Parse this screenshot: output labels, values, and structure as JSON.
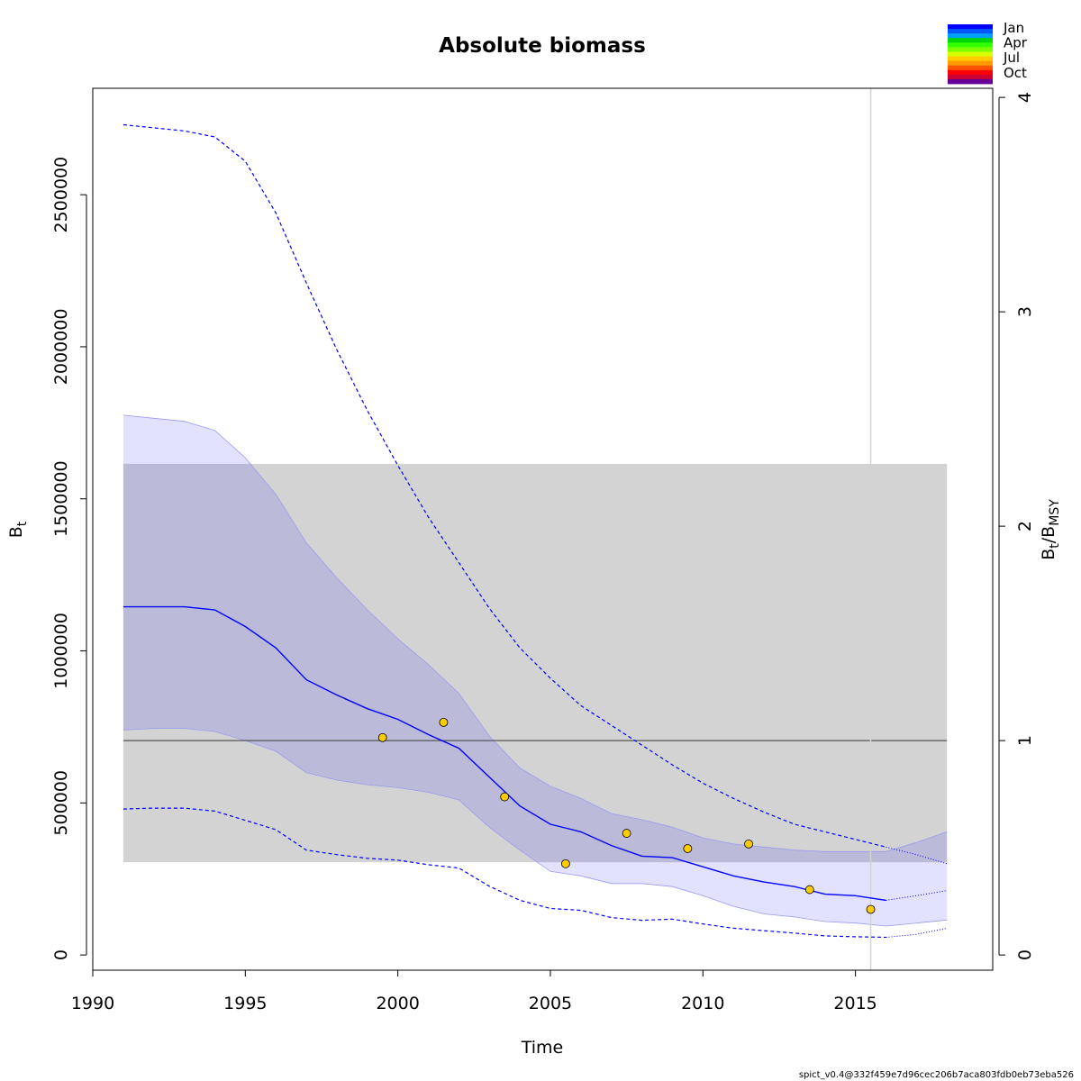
{
  "chart_data": {
    "type": "line",
    "title": "Absolute biomass",
    "xlabel": "Time",
    "ylabel": {
      "main": "B",
      "sub": "t"
    },
    "y2label": {
      "main1": "B",
      "sub1": "t",
      "slash": "/",
      "main2": "B",
      "sub2": "MSY"
    },
    "xlim": [
      1990,
      2019.5
    ],
    "ylim": [
      -50000,
      2850000
    ],
    "x_ticks": [
      1990,
      1995,
      2000,
      2005,
      2010,
      2015
    ],
    "y_ticks": [
      0,
      500000,
      1000000,
      1500000,
      2000000,
      2500000
    ],
    "y2_ticks": [
      0,
      1,
      2,
      3,
      4
    ],
    "bmsy": 705000,
    "bmsy_band": {
      "x": [
        1991,
        2018
      ],
      "lower": 305000,
      "upper": 1615000
    },
    "vline_x": 2015.5,
    "series": [
      {
        "name": "B estimate",
        "x": [
          1991,
          1992,
          1993,
          1994,
          1995,
          1996,
          1997,
          1998,
          1999,
          2000,
          2001,
          2002,
          2003,
          2004,
          2005,
          2006,
          2007,
          2008,
          2009,
          2010,
          2011,
          2012,
          2013,
          2014,
          2015,
          2016
        ],
        "values": [
          1145000,
          1145000,
          1145000,
          1135000,
          1080000,
          1010000,
          905000,
          855000,
          810000,
          775000,
          725000,
          680000,
          585000,
          490000,
          430000,
          405000,
          360000,
          325000,
          320000,
          290000,
          260000,
          240000,
          225000,
          200000,
          195000,
          180000
        ]
      },
      {
        "name": "B estimate forecast",
        "x": [
          2016,
          2017,
          2018
        ],
        "values": [
          180000,
          195000,
          212000
        ]
      },
      {
        "name": "B CI lower",
        "x": [
          1991,
          1992,
          1993,
          1994,
          1995,
          1996,
          1997,
          1998,
          1999,
          2000,
          2001,
          2002,
          2003,
          2004,
          2005,
          2006,
          2007,
          2008,
          2009,
          2010,
          2011,
          2012,
          2013,
          2014,
          2015,
          2016,
          2017,
          2018
        ],
        "values": [
          740000,
          745000,
          745000,
          735000,
          705000,
          670000,
          600000,
          575000,
          560000,
          550000,
          535000,
          510000,
          420000,
          345000,
          275000,
          260000,
          235000,
          235000,
          225000,
          195000,
          160000,
          135000,
          125000,
          110000,
          105000,
          95000,
          105000,
          115000
        ]
      },
      {
        "name": "B CI upper",
        "x": [
          1991,
          1992,
          1993,
          1994,
          1995,
          1996,
          1997,
          1998,
          1999,
          2000,
          2001,
          2002,
          2003,
          2004,
          2005,
          2006,
          2007,
          2008,
          2009,
          2010,
          2011,
          2012,
          2013,
          2014,
          2015,
          2016,
          2017,
          2018
        ],
        "values": [
          1775000,
          1765000,
          1755000,
          1725000,
          1635000,
          1515000,
          1355000,
          1240000,
          1135000,
          1040000,
          955000,
          860000,
          720000,
          615000,
          555000,
          515000,
          465000,
          445000,
          420000,
          385000,
          365000,
          355000,
          345000,
          340000,
          340000,
          340000,
          370000,
          405000
        ]
      },
      {
        "name": "B_MSY-scaled CI upper",
        "x": [
          1991,
          1992,
          1993,
          1994,
          1995,
          1996,
          1997,
          1998,
          1999,
          2000,
          2001,
          2002,
          2003,
          2004,
          2005,
          2006,
          2007,
          2008,
          2009,
          2010,
          2011,
          2012,
          2013,
          2014,
          2015,
          2016
        ],
        "values": [
          2730000,
          2720000,
          2710000,
          2690000,
          2610000,
          2440000,
          2210000,
          1990000,
          1790000,
          1610000,
          1440000,
          1290000,
          1140000,
          1010000,
          910000,
          820000,
          755000,
          690000,
          625000,
          565000,
          515000,
          470000,
          430000,
          405000,
          380000,
          355000
        ]
      },
      {
        "name": "B_MSY-scaled CI upper forecast",
        "x": [
          2016,
          2017,
          2018
        ],
        "values": [
          355000,
          330000,
          300000
        ]
      },
      {
        "name": "B_MSY-scaled CI lower",
        "x": [
          1991,
          1992,
          1993,
          1994,
          1995,
          1996,
          1997,
          1998,
          1999,
          2000,
          2001,
          2002,
          2003,
          2004,
          2005,
          2006,
          2007,
          2008,
          2009,
          2010,
          2011,
          2012,
          2013,
          2014,
          2015,
          2016
        ],
        "values": [
          480000,
          483000,
          483000,
          473000,
          443000,
          412000,
          345000,
          330000,
          318000,
          312000,
          297000,
          286000,
          226000,
          180000,
          153000,
          147000,
          123000,
          114000,
          118000,
          102000,
          88000,
          80000,
          72000,
          63000,
          60000,
          58000
        ]
      },
      {
        "name": "B_MSY-scaled CI lower forecast",
        "x": [
          2016,
          2017,
          2018
        ],
        "values": [
          58000,
          68000,
          88000
        ]
      }
    ],
    "observations": {
      "x": [
        1999.5,
        2001.5,
        2003.5,
        2005.5,
        2007.5,
        2009.5,
        2011.5,
        2013.5,
        2015.5
      ],
      "values": [
        715000,
        765000,
        520000,
        300000,
        400000,
        350000,
        365000,
        215000,
        150000
      ]
    },
    "legend": {
      "position": "top-right",
      "labels": [
        "Jan",
        "Apr",
        "Jul",
        "Oct"
      ]
    },
    "colors": {
      "estimate": "#0000ff",
      "ci_fill": "#e2e2ff",
      "band": "#d3d3d3",
      "overlap": "#bbbbd9",
      "obs_fill": "#ffcc00",
      "vline": "#d3d3d3",
      "ref_line": "#555555",
      "months": [
        "#0000ff",
        "#0057ff",
        "#00a0ff",
        "#00d900",
        "#33ff00",
        "#7aff00",
        "#d8ff00",
        "#ffcc00",
        "#ff9900",
        "#ff5500",
        "#ff0000",
        "#cc0033",
        "#660099"
      ]
    }
  },
  "footer": {
    "version": "spict_v0.4@332f459e7d96cec206b7aca803fdb0eb73eba526"
  }
}
